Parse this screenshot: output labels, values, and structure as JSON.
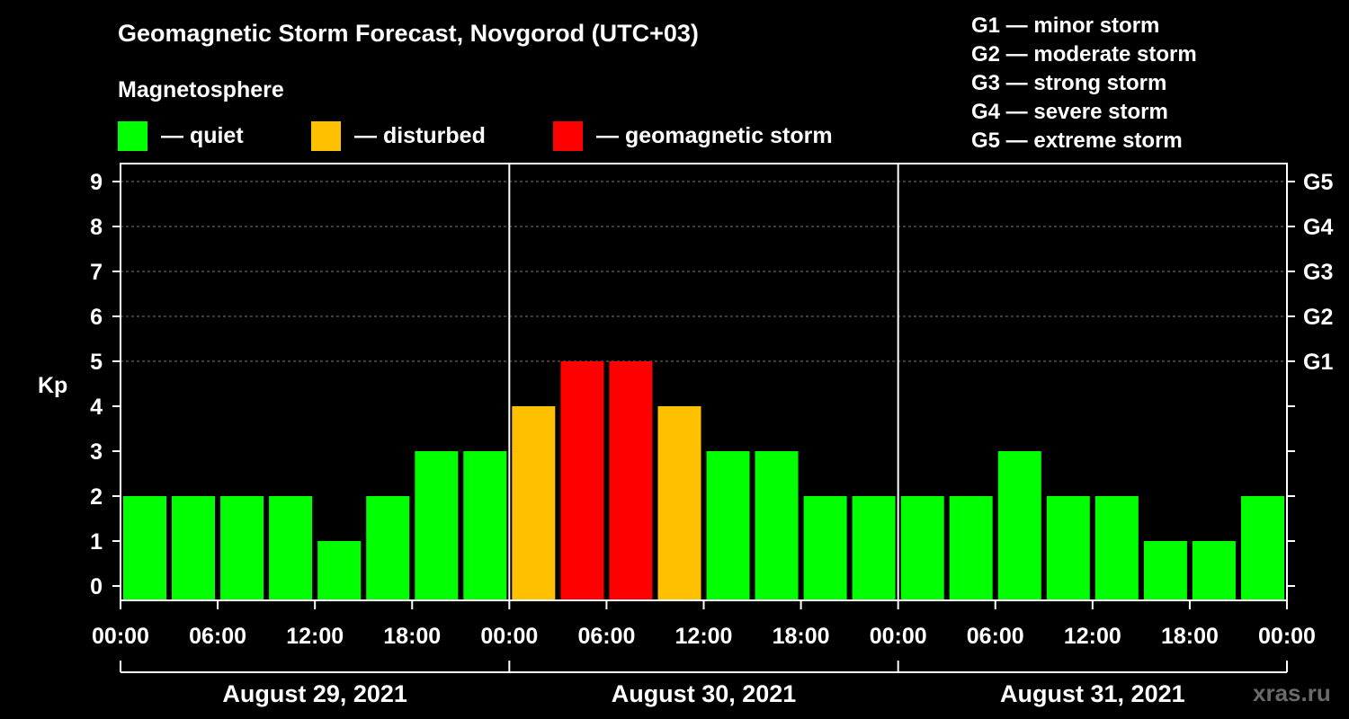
{
  "header": {
    "title": "Geomagnetic Storm Forecast, Novgorod (UTC+03)",
    "subtitle": "Magnetosphere"
  },
  "legend": [
    {
      "label": "— quiet",
      "color": "#00ff00"
    },
    {
      "label": "— disturbed",
      "color": "#ffc000"
    },
    {
      "label": "— geomagnetic storm",
      "color": "#ff0000"
    }
  ],
  "storm_scale": [
    "G1 — minor storm",
    "G2 — moderate storm",
    "G3 — strong storm",
    "G4 — severe storm",
    "G5 — extreme storm"
  ],
  "watermark": "xras.ru",
  "chart_data": {
    "type": "bar",
    "ylabel": "Kp",
    "ylim": [
      0,
      9
    ],
    "yticks": [
      "0",
      "1",
      "2",
      "3",
      "4",
      "5",
      "6",
      "7",
      "8",
      "9"
    ],
    "right_ticks": [
      {
        "value": 5,
        "label": "G1"
      },
      {
        "value": 6,
        "label": "G2"
      },
      {
        "value": 7,
        "label": "G3"
      },
      {
        "value": 8,
        "label": "G4"
      },
      {
        "value": 9,
        "label": "G5"
      }
    ],
    "xticks": [
      "00:00",
      "06:00",
      "12:00",
      "18:00",
      "00:00",
      "06:00",
      "12:00",
      "18:00",
      "00:00",
      "06:00",
      "12:00",
      "18:00",
      "00:00"
    ],
    "days": [
      "August 29, 2021",
      "August 30, 2021",
      "August 31, 2021"
    ],
    "interval_hours": 3,
    "values": [
      2,
      2,
      2,
      2,
      1,
      2,
      3,
      3,
      4,
      5,
      5,
      4,
      3,
      3,
      2,
      2,
      2,
      2,
      3,
      2,
      2,
      1,
      1,
      2
    ],
    "colors": {
      "quiet": "#00ff00",
      "disturbed": "#ffc000",
      "storm": "#ff0000"
    },
    "grid": true
  }
}
